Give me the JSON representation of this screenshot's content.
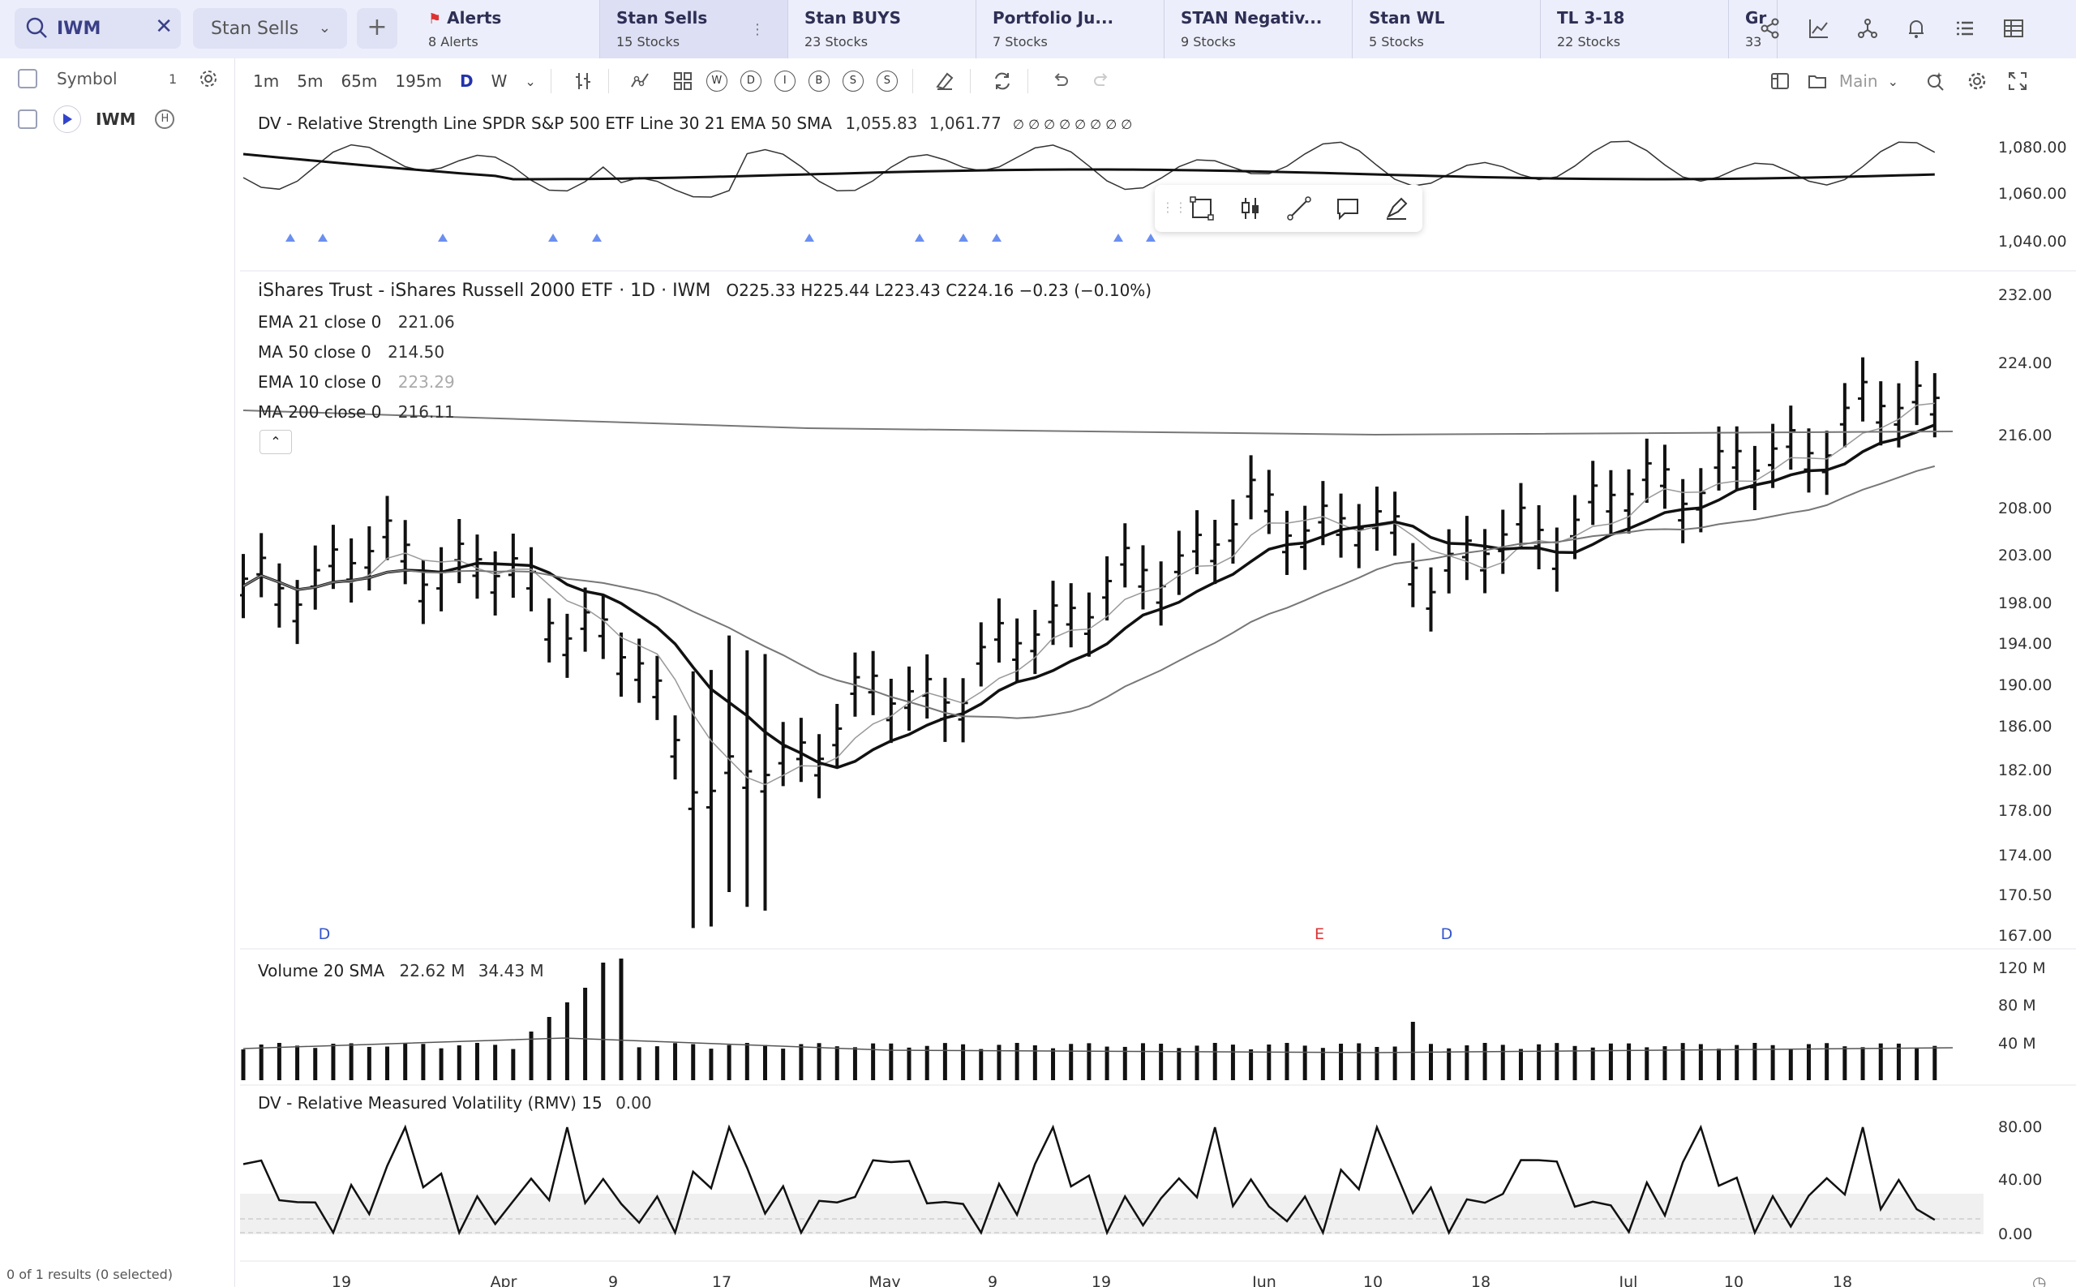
{
  "search": {
    "value": "IWM"
  },
  "list_selector": {
    "label": "Stan Sells"
  },
  "tabs": [
    {
      "title": "Alerts",
      "sub": "8 Alerts"
    },
    {
      "title": "Stan Sells",
      "sub": "15 Stocks"
    },
    {
      "title": "Stan BUYS",
      "sub": "23 Stocks"
    },
    {
      "title": "Portfolio Ju...",
      "sub": "7 Stocks"
    },
    {
      "title": "STAN Negativ...",
      "sub": "9 Stocks"
    },
    {
      "title": "Stan WL",
      "sub": "5 Stocks"
    },
    {
      "title": "TL 3-18",
      "sub": "22 Stocks"
    },
    {
      "title": "Gr",
      "sub": "33"
    }
  ],
  "sidebar": {
    "header": "Symbol",
    "count": "1",
    "symbol": "IWM",
    "footer": "0 of 1 results (0 selected)"
  },
  "toolbar": {
    "timeframes": [
      "1m",
      "5m",
      "65m",
      "195m",
      "D",
      "W"
    ],
    "letters": [
      "W",
      "D",
      "I",
      "B",
      "S",
      "S"
    ],
    "layout_label": "Main"
  },
  "chart": {
    "rs_legend": {
      "label": "DV - Relative Strength Line SPDR S&P 500 ETF Line 30 21 EMA 50 SMA",
      "v1": "1,055.83",
      "v2": "1,061.77",
      "extras": "∅ ∅ ∅ ∅ ∅ ∅ ∅ ∅"
    },
    "title": "iShares Trust - iShares Russell 2000 ETF · 1D · IWM",
    "ohlc": "O225.33  H225.44  L223.43  C224.16  −0.23 (−0.10%)",
    "indicators": [
      {
        "label": "EMA 21 close 0",
        "value": "221.06"
      },
      {
        "label": "MA 50 close 0",
        "value": "214.50"
      },
      {
        "label": "EMA 10 close 0",
        "value": "223.29"
      },
      {
        "label": "MA 200 close 0",
        "value": "216.11"
      }
    ],
    "volume_legend": {
      "label": "Volume 20 SMA",
      "v1": "22.62 M",
      "v2": "34.43 M"
    },
    "rmv_legend": {
      "label": "DV - Relative Measured Volatility (RMV) 15",
      "value": "0.00"
    },
    "rs_axis": [
      "1,080.00",
      "1,060.00",
      "1,040.00"
    ],
    "price_axis": [
      "232.00",
      "224.00",
      "216.00",
      "208.00",
      "203.00",
      "198.00",
      "194.00",
      "190.00",
      "186.00",
      "182.00",
      "178.00",
      "174.00",
      "170.50",
      "167.00"
    ],
    "volume_axis": [
      "120 M",
      "80 M",
      "40 M"
    ],
    "rmv_axis": [
      "80.00",
      "40.00",
      "0.00"
    ],
    "x_labels": [
      "19",
      "Apr",
      "9",
      "17",
      "May",
      "9",
      "19",
      "Jun",
      "10",
      "18",
      "Jul",
      "10",
      "18"
    ],
    "events": [
      {
        "letter": "D",
        "color": "#3355cc"
      },
      {
        "letter": "E",
        "color": "#dd3333"
      },
      {
        "letter": "D",
        "color": "#3355cc"
      }
    ]
  }
}
